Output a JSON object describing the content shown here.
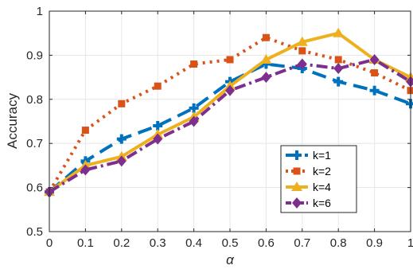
{
  "chart_data": {
    "type": "line",
    "title": "",
    "xlabel": "α",
    "ylabel": "Accuracy",
    "x": [
      0,
      0.1,
      0.2,
      0.3,
      0.4,
      0.5,
      0.6,
      0.7,
      0.8,
      0.9,
      1
    ],
    "xlim": [
      0,
      1
    ],
    "ylim": [
      0.5,
      1
    ],
    "xticks": [
      "0",
      "0.1",
      "0.2",
      "0.3",
      "0.4",
      "0.5",
      "0.6",
      "0.7",
      "0.8",
      "0.9",
      "1"
    ],
    "yticks": [
      "0.5",
      "0.6",
      "0.7",
      "0.8",
      "0.9",
      "1"
    ],
    "grid": true,
    "legend_position": "lower-right",
    "series": [
      {
        "name": "k=1",
        "values": [
          0.59,
          0.66,
          0.71,
          0.74,
          0.78,
          0.84,
          0.88,
          0.87,
          0.84,
          0.82,
          0.79
        ],
        "color": "#0072BD",
        "dash": "dash",
        "marker": "plus"
      },
      {
        "name": "k=2",
        "values": [
          0.59,
          0.73,
          0.79,
          0.83,
          0.88,
          0.89,
          0.94,
          0.91,
          0.89,
          0.86,
          0.82
        ],
        "color": "#D95319",
        "dash": "dot",
        "marker": "square"
      },
      {
        "name": "k=4",
        "values": [
          0.59,
          0.65,
          0.67,
          0.72,
          0.76,
          0.83,
          0.89,
          0.93,
          0.95,
          0.89,
          0.85
        ],
        "color": "#EDB120",
        "dash": "solid",
        "marker": "triangle"
      },
      {
        "name": "k=6",
        "values": [
          0.59,
          0.64,
          0.66,
          0.71,
          0.75,
          0.82,
          0.85,
          0.88,
          0.87,
          0.89,
          0.84
        ],
        "color": "#7E2F8E",
        "dash": "dashdot",
        "marker": "diamond"
      }
    ]
  }
}
